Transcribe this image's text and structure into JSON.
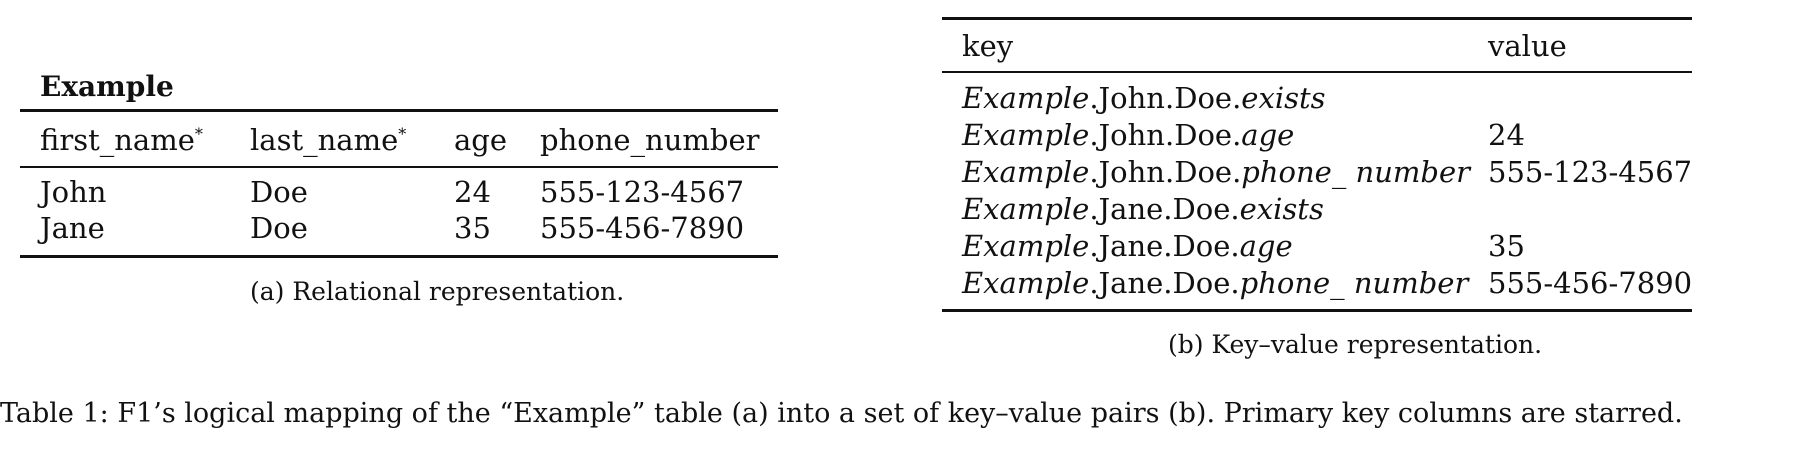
{
  "table_a": {
    "title": "Example",
    "headers": [
      {
        "text": "first_name",
        "starred": true
      },
      {
        "text": "last_name",
        "starred": true
      },
      {
        "text": "age",
        "starred": false
      },
      {
        "text": "phone_number",
        "starred": false
      }
    ],
    "star": "*",
    "rows": [
      [
        "John",
        "Doe",
        "24",
        "555-123-4567"
      ],
      [
        "Jane",
        "Doe",
        "35",
        "555-456-7890"
      ]
    ],
    "caption": "(a) Relational representation."
  },
  "table_b": {
    "headers": [
      "key",
      "value"
    ],
    "rows": [
      {
        "tbl": "Example",
        "path": ".John.Doe.",
        "field": "exists",
        "value": ""
      },
      {
        "tbl": "Example",
        "path": ".John.Doe.",
        "field": "age",
        "value": "24"
      },
      {
        "tbl": "Example",
        "path": ".John.Doe.",
        "field": "phone_ number",
        "value": "555-123-4567"
      },
      {
        "tbl": "Example",
        "path": ".Jane.Doe.",
        "field": "exists",
        "value": ""
      },
      {
        "tbl": "Example",
        "path": ".Jane.Doe.",
        "field": "age",
        "value": "35"
      },
      {
        "tbl": "Example",
        "path": ".Jane.Doe.",
        "field": "phone_ number",
        "value": "555-456-7890"
      }
    ],
    "caption": "(b) Key–value representation."
  },
  "main_caption": "Table 1: F1’s logical mapping of the “Example” table (a) into a set of key–value pairs (b). Primary key columns are starred."
}
